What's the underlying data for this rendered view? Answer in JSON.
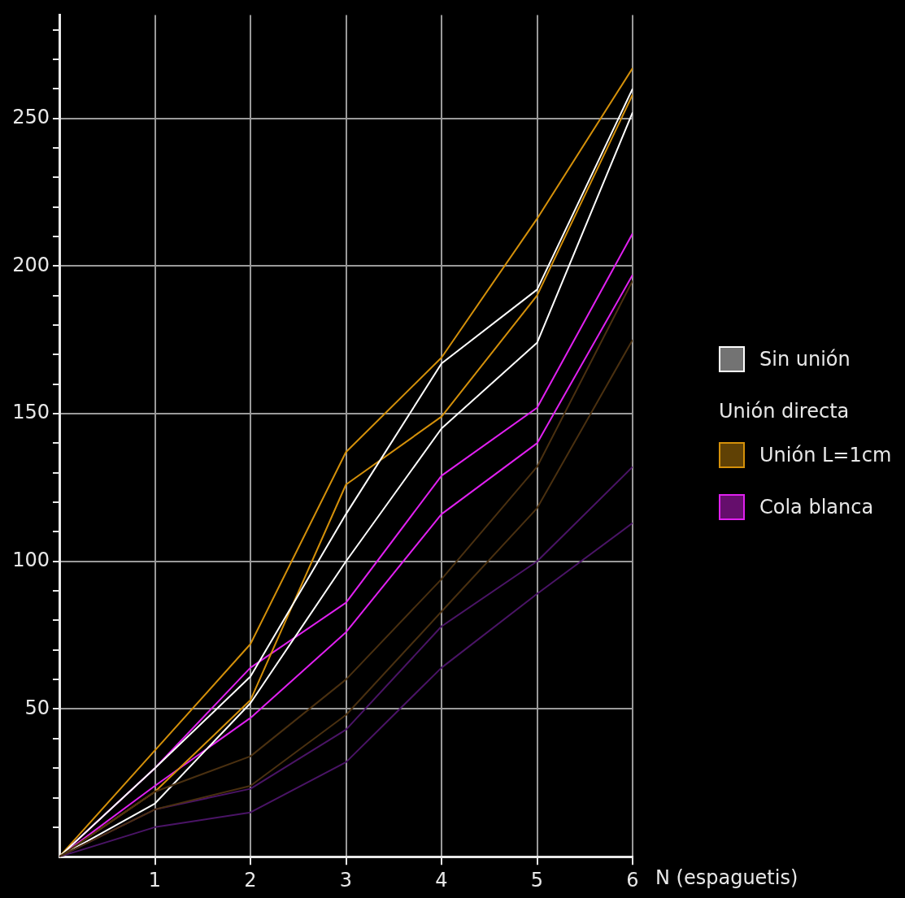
{
  "chart_data": {
    "type": "line",
    "xlabel": "N (espaguetis)",
    "x": [
      0,
      1,
      2,
      3,
      4,
      5,
      6
    ],
    "xlim": [
      0,
      6
    ],
    "xticks": [
      1,
      2,
      3,
      4,
      5,
      6
    ],
    "ylim": [
      0,
      285
    ],
    "yticks": [
      {
        "value": 10,
        "label": null
      },
      {
        "value": 20,
        "label": null
      },
      {
        "value": 30,
        "label": null
      },
      {
        "value": 40,
        "label": null
      },
      50,
      {
        "value": 60,
        "label": null
      },
      {
        "value": 70,
        "label": null
      },
      {
        "value": 80,
        "label": null
      },
      {
        "value": 90,
        "label": null
      },
      100,
      {
        "value": 110,
        "label": null
      },
      {
        "value": 120,
        "label": null
      },
      {
        "value": 130,
        "label": null
      },
      {
        "value": 140,
        "label": null
      },
      150,
      {
        "value": 160,
        "label": null
      },
      {
        "value": 170,
        "label": null
      },
      {
        "value": 180,
        "label": null
      },
      {
        "value": 190,
        "label": null
      },
      200,
      {
        "value": 210,
        "label": null
      },
      {
        "value": 220,
        "label": null
      },
      {
        "value": 230,
        "label": null
      },
      {
        "value": 240,
        "label": null
      },
      250,
      {
        "value": 260,
        "label": null
      },
      {
        "value": 270,
        "label": null
      },
      {
        "value": 280,
        "label": null
      }
    ],
    "grid": true,
    "legend": "right",
    "annotations": [
      "Unión directa"
    ],
    "series": [
      {
        "color": "#4a3010",
        "values": [
          0,
          22,
          34,
          60,
          94,
          132,
          195
        ]
      },
      {
        "color": "#4a3010",
        "values": [
          0,
          16,
          24,
          48,
          83,
          118,
          175
        ]
      },
      {
        "color": "#4a1466",
        "values": [
          0,
          16,
          23,
          43,
          78,
          100,
          132
        ]
      },
      {
        "color": "#4a1466",
        "values": [
          0,
          10,
          15,
          32,
          64,
          89,
          113
        ]
      },
      {
        "name": "Sin unión",
        "color": "#ffffff",
        "values": [
          0,
          30,
          61,
          116,
          167,
          192,
          260
        ]
      },
      {
        "color": "#ffffff",
        "values": [
          0,
          18,
          52,
          100,
          145,
          174,
          252
        ]
      },
      {
        "name": "Unión L=1cm",
        "color": "#d4900a",
        "values": [
          0,
          36,
          72,
          137,
          169,
          216,
          267
        ]
      },
      {
        "color": "#d4900a",
        "values": [
          0,
          22,
          53,
          126,
          149,
          190,
          258
        ]
      },
      {
        "name": "Cola blanca",
        "color": "#e020f0",
        "values": [
          0,
          30,
          64,
          86,
          129,
          152,
          211
        ]
      },
      {
        "color": "#e020f0",
        "values": [
          0,
          24,
          47,
          76,
          116,
          140,
          197
        ]
      }
    ]
  }
}
